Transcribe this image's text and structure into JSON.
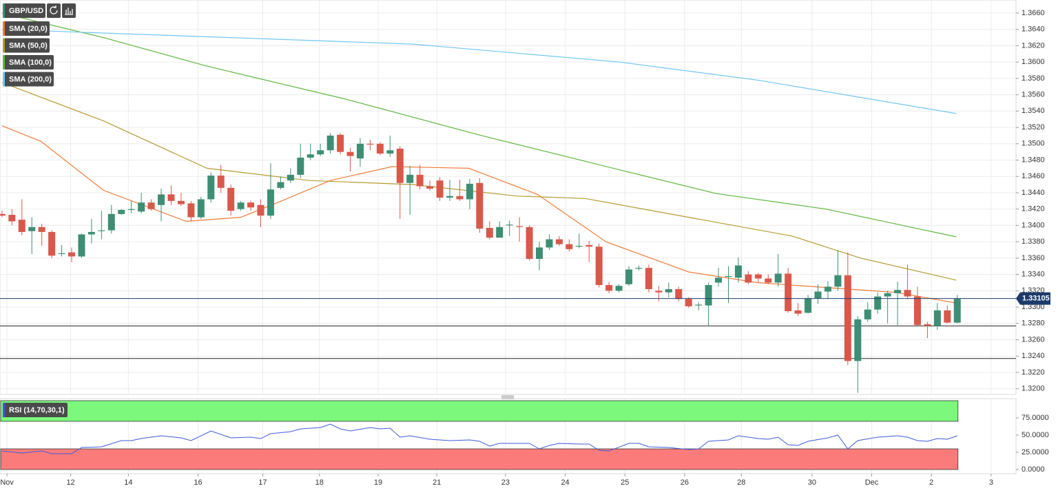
{
  "chart_data": [
    {
      "type": "candlestick",
      "title": "GBP/USD",
      "open": [
        1.3414,
        1.3413,
        1.3407,
        1.3393,
        1.3398,
        1.3392,
        1.3365,
        1.3367,
        1.3362,
        1.3389,
        1.3393,
        1.3394,
        1.3414,
        1.3419,
        1.3417,
        1.3428,
        1.3425,
        1.3438,
        1.343,
        1.3427,
        1.341,
        1.3432,
        1.3461,
        1.3446,
        1.342,
        1.3428,
        1.3425,
        1.3412,
        1.3446,
        1.3455,
        1.3462,
        1.3483,
        1.3487,
        1.3492,
        1.3511,
        1.349,
        1.3482,
        1.35,
        1.35,
        1.3488,
        1.3494,
        1.3452,
        1.3462,
        1.3448,
        1.3455,
        1.3434,
        1.3436,
        1.3432,
        1.3452,
        1.3397,
        1.3385,
        1.34,
        1.3399,
        1.3398,
        1.3359,
        1.3373,
        1.3383,
        1.3377,
        1.3374,
        1.3376,
        1.3374,
        1.3327,
        1.332,
        1.3328,
        1.3347,
        1.3348,
        1.332,
        1.3318,
        1.3322,
        1.331,
        1.3302,
        1.3302,
        1.333,
        1.3337,
        1.3336,
        1.334,
        1.334,
        1.3335,
        1.333,
        1.3341,
        1.3296,
        1.3293,
        1.3311,
        1.3319,
        1.3325,
        1.3339,
        1.3234,
        1.3285,
        1.3297,
        1.3313,
        1.3317,
        1.3321,
        1.3313,
        1.3279,
        1.3277,
        1.3296,
        1.3281
      ],
      "high": [
        1.3418,
        1.342,
        1.3432,
        1.341,
        1.3402,
        1.3394,
        1.3376,
        1.3373,
        1.339,
        1.3408,
        1.3418,
        1.3425,
        1.342,
        1.343,
        1.344,
        1.3432,
        1.3445,
        1.3449,
        1.344,
        1.343,
        1.3435,
        1.3465,
        1.3474,
        1.345,
        1.343,
        1.343,
        1.3432,
        1.3476,
        1.346,
        1.347,
        1.35,
        1.35,
        1.35,
        1.3513,
        1.3513,
        1.3495,
        1.3507,
        1.3505,
        1.3502,
        1.351,
        1.3497,
        1.3473,
        1.3474,
        1.3455,
        1.3459,
        1.3456,
        1.3456,
        1.3457,
        1.3458,
        1.3405,
        1.3405,
        1.3406,
        1.341,
        1.34,
        1.338,
        1.3389,
        1.3387,
        1.3383,
        1.339,
        1.3381,
        1.3378,
        1.3331,
        1.3328,
        1.335,
        1.3351,
        1.3352,
        1.3326,
        1.333,
        1.3325,
        1.3312,
        1.3306,
        1.333,
        1.3348,
        1.335,
        1.3361,
        1.3344,
        1.3342,
        1.334,
        1.3365,
        1.3348,
        1.3305,
        1.3315,
        1.3328,
        1.3332,
        1.337,
        1.3367,
        1.3289,
        1.3306,
        1.3318,
        1.332,
        1.3331,
        1.3352,
        1.3325,
        1.3282,
        1.3305,
        1.3302,
        1.3315
      ],
      "low": [
        1.341,
        1.34,
        1.3388,
        1.3365,
        1.3375,
        1.336,
        1.3362,
        1.3355,
        1.336,
        1.3378,
        1.3383,
        1.339,
        1.3413,
        1.3415,
        1.3415,
        1.3418,
        1.3405,
        1.3425,
        1.3424,
        1.3405,
        1.3408,
        1.3428,
        1.344,
        1.3412,
        1.3418,
        1.3418,
        1.3398,
        1.3408,
        1.3444,
        1.3452,
        1.3458,
        1.348,
        1.3485,
        1.3488,
        1.3487,
        1.3466,
        1.3472,
        1.3492,
        1.3486,
        1.3484,
        1.3408,
        1.3413,
        1.3444,
        1.3443,
        1.343,
        1.343,
        1.343,
        1.342,
        1.3391,
        1.3383,
        1.3385,
        1.3387,
        1.338,
        1.3357,
        1.3345,
        1.337,
        1.3375,
        1.3368,
        1.3372,
        1.3355,
        1.3324,
        1.3317,
        1.3318,
        1.3326,
        1.3345,
        1.3318,
        1.3307,
        1.3312,
        1.3307,
        1.3299,
        1.3296,
        1.3277,
        1.3325,
        1.3305,
        1.333,
        1.3328,
        1.333,
        1.3328,
        1.3325,
        1.3293,
        1.3289,
        1.3292,
        1.3304,
        1.331,
        1.332,
        1.3229,
        1.3195,
        1.3282,
        1.3292,
        1.328,
        1.3278,
        1.331,
        1.3277,
        1.3262,
        1.3272,
        1.328,
        1.328
      ],
      "close": [
        1.3412,
        1.3405,
        1.3392,
        1.3398,
        1.3392,
        1.3363,
        1.3366,
        1.3362,
        1.3389,
        1.3392,
        1.3394,
        1.3414,
        1.3419,
        1.342,
        1.3428,
        1.342,
        1.3438,
        1.343,
        1.3426,
        1.341,
        1.3432,
        1.3461,
        1.3446,
        1.3418,
        1.3428,
        1.3422,
        1.3412,
        1.3444,
        1.3453,
        1.3462,
        1.3483,
        1.3487,
        1.3492,
        1.351,
        1.349,
        1.3485,
        1.35,
        1.3499,
        1.3488,
        1.3492,
        1.3452,
        1.3462,
        1.3448,
        1.3445,
        1.3434,
        1.3436,
        1.3432,
        1.3451,
        1.3396,
        1.3385,
        1.3398,
        1.3401,
        1.3398,
        1.3359,
        1.3373,
        1.3383,
        1.3377,
        1.3371,
        1.3375,
        1.3374,
        1.3327,
        1.332,
        1.3326,
        1.3346,
        1.3348,
        1.3322,
        1.3318,
        1.3322,
        1.331,
        1.3301,
        1.3303,
        1.3327,
        1.3336,
        1.3338,
        1.3351,
        1.333,
        1.3335,
        1.333,
        1.3341,
        1.3295,
        1.3292,
        1.3311,
        1.3319,
        1.3325,
        1.3339,
        1.3234,
        1.3285,
        1.3297,
        1.3313,
        1.3317,
        1.3321,
        1.3313,
        1.3278,
        1.3277,
        1.3296,
        1.3281,
        1.331
      ],
      "up_color": "#3d8e74",
      "down_color": "#d9584a",
      "series": [
        {
          "name": "SMA (20,0)",
          "color": "#f07b35",
          "x": [
            0,
            3.9,
            10.2,
            18.5,
            24,
            27.5,
            33,
            39.2,
            46.9,
            53.8,
            60.7,
            69,
            75.9,
            82.8,
            89.8,
            95.9
          ],
          "values": [
            1.3522,
            1.3503,
            1.3443,
            1.3405,
            1.341,
            1.3427,
            1.3455,
            1.3472,
            1.347,
            1.3438,
            1.338,
            1.3343,
            1.333,
            1.3324,
            1.3318,
            1.3305
          ]
        },
        {
          "name": "SMA (50,0)",
          "color": "#b59a2f",
          "x": [
            0,
            10.2,
            20.6,
            30.9,
            41.3,
            51.7,
            58.6,
            69,
            79.4,
            86.3,
            95.9
          ],
          "values": [
            1.3575,
            1.3528,
            1.347,
            1.3455,
            1.345,
            1.3436,
            1.3433,
            1.341,
            1.3387,
            1.336,
            1.3333
          ]
        },
        {
          "name": "SMA (100,0)",
          "color": "#5cb83c",
          "x": [
            0,
            10.2,
            20.6,
            34.4,
            48.2,
            62.1,
            71.8,
            82.8,
            95.9
          ],
          "values": [
            1.366,
            1.363,
            1.3595,
            1.3555,
            1.351,
            1.3468,
            1.3439,
            1.342,
            1.3386
          ]
        },
        {
          "name": "SMA (200,0)",
          "color": "#6ec6f2",
          "x": [
            0,
            20.6,
            41.3,
            62.1,
            75.9,
            95.9
          ],
          "values": [
            1.364,
            1.3631,
            1.3622,
            1.36,
            1.3578,
            1.3537
          ]
        }
      ],
      "levels": [
        1.3277,
        1.3237
      ],
      "level_color": "#222222",
      "last_price": 1.33105,
      "last_price_color": "#1d3a6b",
      "xlim": [
        -0.2,
        101.9
      ],
      "xticks": [
        {
          "value": 0.5,
          "label": "Nov"
        },
        {
          "value": 6.9,
          "label": "12"
        },
        {
          "value": 12.7,
          "label": "14"
        },
        {
          "value": 19.7,
          "label": "16"
        },
        {
          "value": 26.2,
          "label": "17"
        },
        {
          "value": 31.9,
          "label": "18"
        },
        {
          "value": 37.8,
          "label": "19"
        },
        {
          "value": 43.7,
          "label": "21"
        },
        {
          "value": 50.6,
          "label": "23"
        },
        {
          "value": 56.6,
          "label": "24"
        },
        {
          "value": 62.6,
          "label": "25"
        },
        {
          "value": 68.6,
          "label": "26"
        },
        {
          "value": 74.3,
          "label": "28"
        },
        {
          "value": 81.4,
          "label": "30"
        },
        {
          "value": 87.4,
          "label": "Dec"
        },
        {
          "value": 93.4,
          "label": "2"
        },
        {
          "value": 99.4,
          "label": "3"
        }
      ],
      "ylim": [
        1.3193,
        1.3676
      ],
      "yticks": [
        {
          "value": 1.32,
          "label": "1.3200"
        },
        {
          "value": 1.322,
          "label": "1.3220"
        },
        {
          "value": 1.324,
          "label": "1.3240"
        },
        {
          "value": 1.326,
          "label": "1.3260"
        },
        {
          "value": 1.328,
          "label": "1.3280"
        },
        {
          "value": 1.33,
          "label": "1.3300"
        },
        {
          "value": 1.332,
          "label": "1.3320"
        },
        {
          "value": 1.334,
          "label": "1.3340"
        },
        {
          "value": 1.336,
          "label": "1.3360"
        },
        {
          "value": 1.338,
          "label": "1.3380"
        },
        {
          "value": 1.34,
          "label": "1.3400"
        },
        {
          "value": 1.342,
          "label": "1.3420"
        },
        {
          "value": 1.344,
          "label": "1.3440"
        },
        {
          "value": 1.346,
          "label": "1.3460"
        },
        {
          "value": 1.348,
          "label": "1.3480"
        },
        {
          "value": 1.35,
          "label": "1.3500"
        },
        {
          "value": 1.352,
          "label": "1.3520"
        },
        {
          "value": 1.354,
          "label": "1.3540"
        },
        {
          "value": 1.356,
          "label": "1.3560"
        },
        {
          "value": 1.358,
          "label": "1.3580"
        },
        {
          "value": 1.36,
          "label": "1.3600"
        },
        {
          "value": 1.362,
          "label": "1.3620"
        },
        {
          "value": 1.364,
          "label": "1.3640"
        },
        {
          "value": 1.366,
          "label": "1.3660"
        }
      ],
      "grid": true
    },
    {
      "type": "line",
      "series": [
        {
          "name": "RSI (14,70,30,1)",
          "color": "#3b5bdb",
          "x": [
            0,
            2,
            4,
            5,
            7,
            8,
            10,
            12,
            13,
            14,
            16,
            18,
            19,
            21,
            23,
            25,
            26,
            27,
            29,
            30,
            32,
            33,
            34,
            35,
            37,
            38,
            39,
            40,
            41,
            43,
            45,
            47,
            48,
            49,
            50,
            53,
            54,
            55,
            56,
            58,
            59,
            60,
            61,
            63,
            64,
            65,
            67,
            69,
            70,
            71,
            73,
            74,
            76,
            77,
            78,
            79,
            80,
            81,
            83,
            84,
            85,
            86,
            88,
            90,
            91,
            92,
            93,
            94,
            95,
            96
          ],
          "values": [
            27,
            24,
            27,
            23,
            23,
            32,
            33,
            42,
            42,
            45,
            49,
            46,
            42,
            56,
            46,
            47,
            45,
            52,
            55,
            59,
            61,
            66,
            59,
            56,
            61,
            59,
            60,
            47,
            49,
            44,
            42,
            43,
            41,
            34,
            38,
            38,
            30,
            35,
            38,
            37,
            37,
            28,
            27,
            38,
            38,
            33,
            32,
            29,
            30,
            41,
            43,
            49,
            45,
            44,
            47,
            36,
            35,
            41,
            46,
            50,
            30,
            42,
            47,
            49,
            47,
            42,
            41,
            45,
            44,
            49
          ]
        }
      ],
      "zones": [
        {
          "from": 70,
          "to": 100,
          "color": "#7cf87c"
        },
        {
          "from": 0,
          "to": 30,
          "color": "#fb7b7b"
        }
      ],
      "ylim": [
        -6,
        103
      ],
      "yticks": [
        {
          "value": 0,
          "label": "0.0000"
        },
        {
          "value": 25,
          "label": "25.0000"
        },
        {
          "value": 50,
          "label": "50.0000"
        },
        {
          "value": 75,
          "label": "75.0000"
        }
      ],
      "grid": true
    }
  ]
}
